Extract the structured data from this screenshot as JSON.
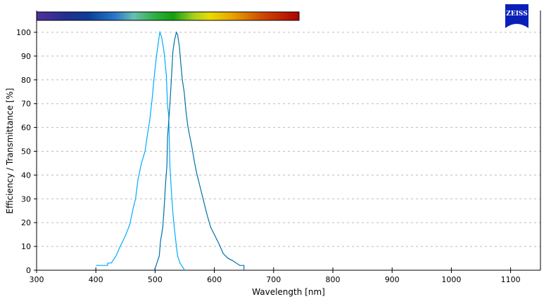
{
  "logo_text": "ZEISS",
  "chart_data": {
    "type": "line",
    "title": "",
    "xlabel": "Wavelength [nm]",
    "ylabel": "Efficiency / Transmittance [%]",
    "xlim": [
      300,
      1150
    ],
    "ylim": [
      0,
      100
    ],
    "xticks": [
      300,
      400,
      500,
      600,
      700,
      800,
      900,
      1000,
      1100
    ],
    "yticks": [
      0,
      10,
      20,
      30,
      40,
      50,
      60,
      70,
      80,
      90,
      100
    ],
    "grid": "horizontal dashed",
    "spectrum_bar_range_nm": [
      300,
      743
    ],
    "series": [
      {
        "color": "#00aaff",
        "x": [
          400,
          420,
          420,
          426,
          434,
          441,
          449,
          457,
          463,
          467,
          471,
          477,
          483,
          487,
          491,
          495,
          498,
          501,
          505,
          508,
          511,
          515,
          519,
          521,
          523,
          525,
          528,
          530,
          532,
          535,
          538,
          542,
          550
        ],
        "y": [
          2,
          2,
          3,
          3,
          6,
          10,
          14,
          19,
          26,
          30,
          38,
          45,
          50,
          57,
          63,
          72,
          80,
          87,
          95,
          100,
          98,
          92,
          82,
          69,
          65,
          44,
          31,
          24,
          19,
          12,
          6,
          3,
          0
        ]
      },
      {
        "color": "#0070a8",
        "x": [
          499,
          503,
          507,
          509,
          513,
          515,
          517,
          520,
          521,
          524,
          526,
          528,
          530,
          533,
          536,
          538,
          541,
          543,
          546,
          549,
          552,
          555,
          558,
          562,
          566,
          570,
          576,
          582,
          588,
          594,
          600,
          608,
          615,
          623,
          631,
          643,
          650,
          650
        ],
        "y": [
          0,
          3,
          6,
          12,
          18,
          25,
          34,
          44,
          56,
          66,
          74,
          83,
          92,
          97,
          100,
          99,
          94,
          88,
          80,
          75,
          67,
          61,
          57,
          52,
          46,
          41,
          35,
          29,
          23,
          18,
          15,
          11,
          7,
          5,
          4,
          2,
          2,
          0
        ]
      }
    ]
  }
}
